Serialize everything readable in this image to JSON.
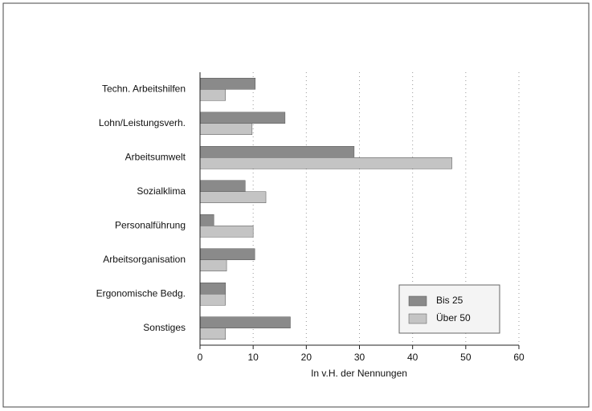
{
  "chart_data": {
    "type": "bar",
    "orientation": "horizontal",
    "categories": [
      "Techn. Arbeitshilfen",
      "Lohn/Leistungsverh.",
      "Arbeitsumwelt",
      "Sozialklima",
      "Personalführung",
      "Arbeitsorganisation",
      "Ergonomische Bedg.",
      "Sonstiges"
    ],
    "series": [
      {
        "name": "Bis 25",
        "color": "#8a8a8a",
        "values": [
          10.4,
          16,
          29,
          8.5,
          2.6,
          10.3,
          4.8,
          17
        ]
      },
      {
        "name": "Über 50",
        "color": "#c4c4c4",
        "values": [
          4.8,
          9.8,
          47.4,
          12.4,
          10,
          5,
          4.8,
          4.8
        ]
      }
    ],
    "x_label": "In v.H. der Nennungen",
    "xlim": [
      0,
      60
    ],
    "xticks": [
      0,
      10,
      20,
      30,
      40,
      50,
      60
    ],
    "grid": true,
    "legend": "lower right"
  }
}
